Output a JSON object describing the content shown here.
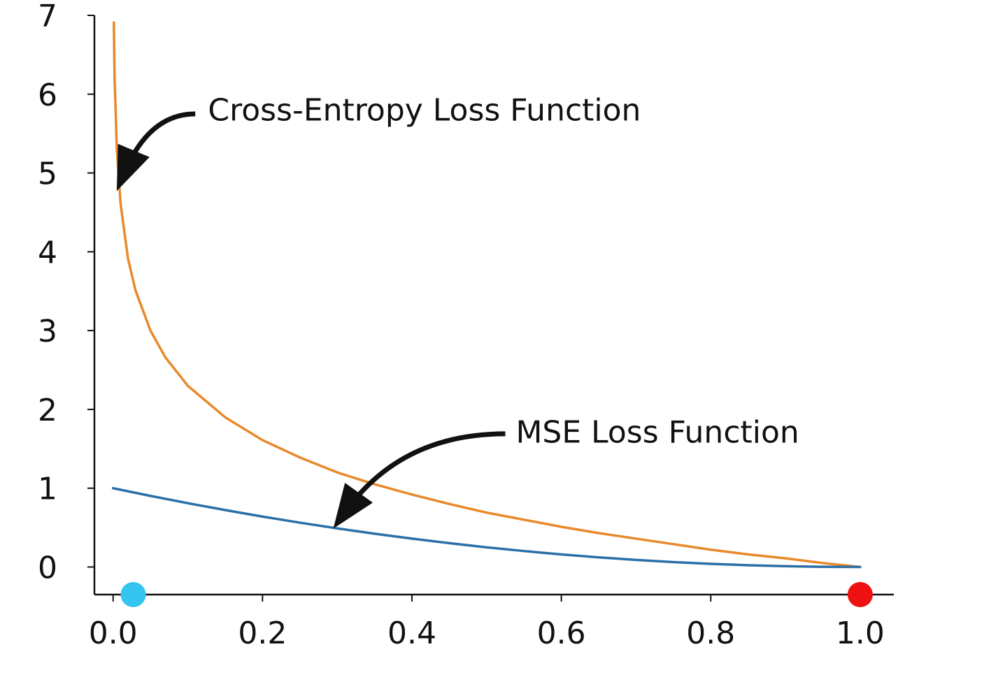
{
  "chart_data": {
    "type": "line",
    "title": "",
    "xlabel": "",
    "ylabel": "",
    "xlim": [
      -0.025,
      1.045
    ],
    "ylim": [
      -0.35,
      7.0
    ],
    "x_ticks": [
      0.0,
      0.2,
      0.4,
      0.6,
      0.8,
      1.0
    ],
    "x_tick_labels": [
      "0.0",
      "0.2",
      "0.4",
      "0.6",
      "0.8",
      "1.0"
    ],
    "y_ticks": [
      0,
      1,
      2,
      3,
      4,
      5,
      6,
      7
    ],
    "y_tick_labels": [
      "0",
      "1",
      "2",
      "3",
      "4",
      "5",
      "6",
      "7"
    ],
    "grid": false,
    "series": [
      {
        "name": "",
        "color": "#e8892b",
        "x": [
          0.001,
          0.002,
          0.005,
          0.01,
          0.02,
          0.03,
          0.05,
          0.07,
          0.1,
          0.15,
          0.2,
          0.25,
          0.3,
          0.35,
          0.4,
          0.45,
          0.5,
          0.55,
          0.6,
          0.65,
          0.7,
          0.75,
          0.8,
          0.85,
          0.9,
          0.95,
          1.0
        ],
        "y": [
          6.91,
          6.21,
          5.3,
          4.61,
          3.91,
          3.51,
          3.0,
          2.66,
          2.3,
          1.9,
          1.61,
          1.39,
          1.2,
          1.05,
          0.92,
          0.8,
          0.69,
          0.6,
          0.51,
          0.43,
          0.36,
          0.29,
          0.22,
          0.16,
          0.11,
          0.05,
          0.0
        ]
      },
      {
        "name": "",
        "color": "#2a6fa8",
        "x": [
          0.0,
          0.05,
          0.1,
          0.15,
          0.2,
          0.25,
          0.3,
          0.35,
          0.4,
          0.45,
          0.5,
          0.55,
          0.6,
          0.65,
          0.7,
          0.75,
          0.8,
          0.85,
          0.9,
          0.95,
          1.0
        ],
        "y": [
          1.0,
          0.9025,
          0.81,
          0.7225,
          0.64,
          0.5625,
          0.49,
          0.4225,
          0.36,
          0.3025,
          0.25,
          0.2025,
          0.16,
          0.1225,
          0.09,
          0.0625,
          0.04,
          0.0225,
          0.01,
          0.0025,
          0.0
        ]
      }
    ],
    "points": [
      {
        "x": 0.027,
        "y": -0.35,
        "color": "#35c3f0"
      },
      {
        "x": 1.0,
        "y": -0.35,
        "color": "#ee1111"
      }
    ],
    "annotations": [
      {
        "text": "Cross-Entropy Loss Function",
        "text_x": 0.127,
        "text_y": 5.8,
        "arrow_from": [
          0.11,
          5.75
        ],
        "arrow_to": [
          0.015,
          5.0
        ]
      },
      {
        "text": "MSE Loss Function",
        "text_x": 0.539,
        "text_y": 1.71,
        "arrow_from": [
          0.525,
          1.69
        ],
        "arrow_to": [
          0.31,
          0.69
        ]
      }
    ]
  }
}
